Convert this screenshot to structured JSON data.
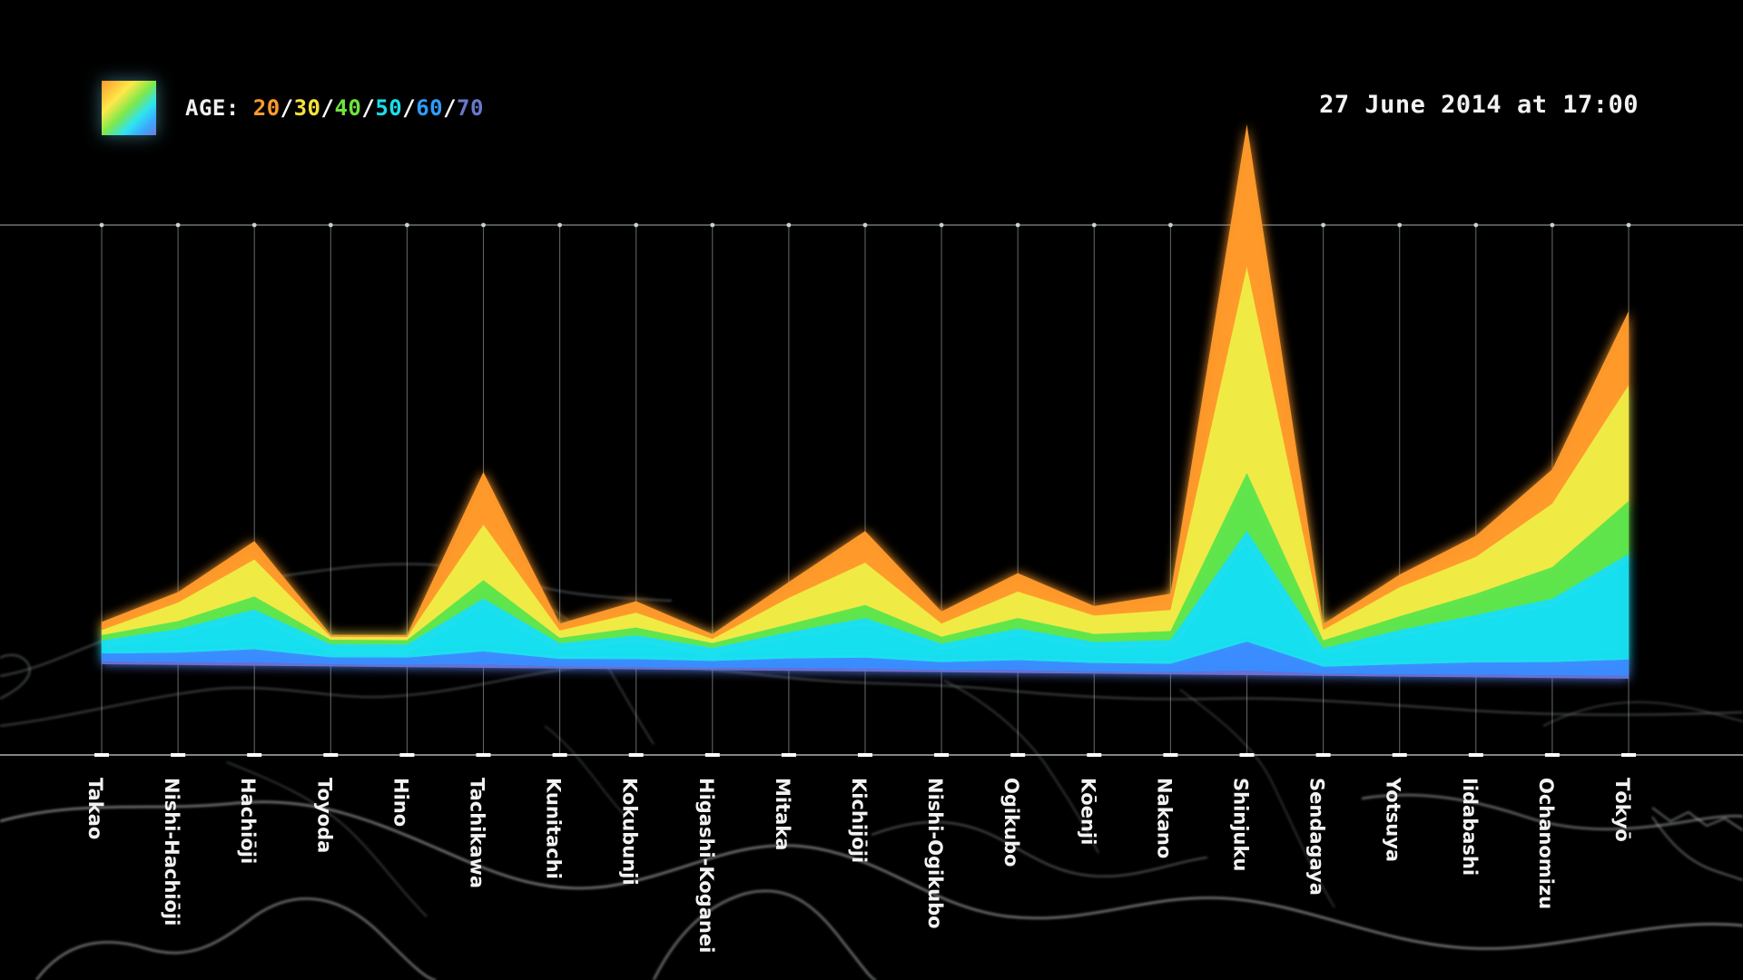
{
  "legend": {
    "label": "AGE:",
    "separator": "/",
    "ages": [
      {
        "text": "20",
        "color": "#ff9a2e"
      },
      {
        "text": "30",
        "color": "#f4e23c"
      },
      {
        "text": "40",
        "color": "#6fe23f"
      },
      {
        "text": "50",
        "color": "#19e0ee"
      },
      {
        "text": "60",
        "color": "#2f9dff"
      },
      {
        "text": "70",
        "color": "#6878cc"
      }
    ]
  },
  "timestamp": "27 June 2014 at 17:00",
  "chart_data": {
    "type": "area",
    "stacked": true,
    "grid": true,
    "background_map": true,
    "categories": [
      "Takao",
      "Nishi-Hachiōji",
      "Hachiōji",
      "Toyoda",
      "Hino",
      "Tachikawa",
      "Kunitachi",
      "Kokubunji",
      "Higashi-Koganei",
      "Mitaka",
      "Kichijōji",
      "Nishi-Ogikubo",
      "Ogikubo",
      "Kōenji",
      "Nakano",
      "Shinjuku",
      "Sendagaya",
      "Yotsuya",
      "Iidabashi",
      "Ochanomizu",
      "Tōkyō"
    ],
    "ylim": [
      0,
      100
    ],
    "series": [
      {
        "name": "70",
        "color": "#6d6fd6",
        "values": [
          0.5,
          0.5,
          0.6,
          0.4,
          0.4,
          0.6,
          0.4,
          0.4,
          0.4,
          0.5,
          0.5,
          0.4,
          0.5,
          0.4,
          0.4,
          0.8,
          0.4,
          0.4,
          0.5,
          0.5,
          0.6
        ]
      },
      {
        "name": "60",
        "color": "#3a8cff",
        "values": [
          1.5,
          1.8,
          2.5,
          1.3,
          1.4,
          2.5,
          1.4,
          1.5,
          1.3,
          1.8,
          2.1,
          1.5,
          1.9,
          1.6,
          1.6,
          5.5,
          1.3,
          1.9,
          2.3,
          2.5,
          3.0
        ]
      },
      {
        "name": "50",
        "color": "#19dff0",
        "values": [
          2.5,
          4.5,
          7.5,
          2.5,
          2.5,
          10.0,
          3.0,
          4.5,
          2.5,
          5.0,
          7.5,
          3.5,
          6.0,
          4.0,
          4.5,
          21.0,
          3.5,
          6.5,
          9.0,
          12.0,
          20.0
        ]
      },
      {
        "name": "40",
        "color": "#5ee54a",
        "values": [
          1.0,
          1.5,
          2.5,
          0.8,
          0.8,
          3.5,
          1.0,
          1.5,
          0.9,
          1.5,
          2.5,
          1.3,
          2.0,
          1.5,
          1.7,
          11.0,
          1.5,
          2.6,
          4.0,
          6.0,
          10.0
        ]
      },
      {
        "name": "30",
        "color": "#f1ea45",
        "values": [
          1.0,
          3.5,
          7.0,
          0.6,
          0.6,
          10.5,
          1.4,
          2.8,
          0.8,
          5.0,
          8.0,
          2.5,
          5.0,
          3.5,
          4.0,
          39.0,
          2.0,
          5.5,
          7.0,
          12.0,
          22.0
        ]
      },
      {
        "name": "20",
        "color": "#ff9a2a",
        "values": [
          1.5,
          2.0,
          3.5,
          0.4,
          0.4,
          10.0,
          1.3,
          2.2,
          0.9,
          3.0,
          6.0,
          2.3,
          3.5,
          1.8,
          3.1,
          27.0,
          1.1,
          2.4,
          4.0,
          6.5,
          14.0
        ]
      }
    ]
  }
}
